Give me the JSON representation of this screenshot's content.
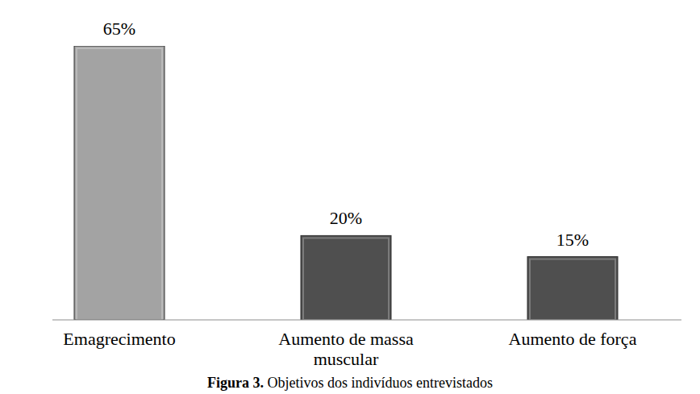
{
  "chart_data": {
    "type": "bar",
    "title": "Figura 3. Objetivos dos indivíduos entrevistados",
    "categories": [
      "Emagrecimento",
      "Aumento de massa muscular",
      "Aumento de força"
    ],
    "values": [
      65,
      20,
      15
    ],
    "value_labels": [
      "65%",
      "20%",
      "15%"
    ],
    "colors": [
      "#a3a3a3",
      "#4f4f4f",
      "#4f4f4f"
    ],
    "ylim": [
      0,
      65
    ],
    "data_labels": true,
    "tick_labels": "x",
    "grid": false
  }
}
